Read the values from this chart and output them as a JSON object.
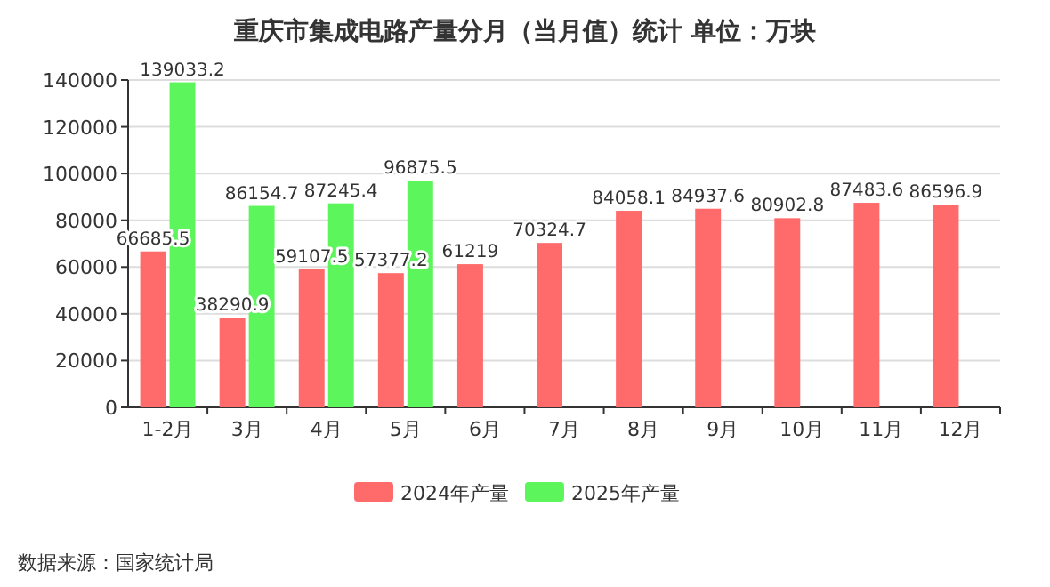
{
  "chart_data": {
    "type": "bar",
    "title": "重庆市集成电路产量分月（当月值）统计  单位：万块",
    "categories": [
      "1-2月",
      "3月",
      "4月",
      "5月",
      "6月",
      "7月",
      "8月",
      "9月",
      "10月",
      "11月",
      "12月"
    ],
    "series": [
      {
        "name": "2024年产量",
        "color": "#ff6b6b",
        "values": [
          66685.5,
          38290.9,
          59107.5,
          57377.2,
          61219,
          70324.7,
          84058.1,
          84937.6,
          80902.8,
          87483.6,
          86596.9
        ]
      },
      {
        "name": "2025年产量",
        "color": "#5cf55c",
        "values": [
          139033.2,
          86154.7,
          87245.4,
          96875.5,
          null,
          null,
          null,
          null,
          null,
          null,
          null
        ]
      }
    ],
    "ylim": [
      0,
      140000
    ],
    "yticks": [
      0,
      20000,
      40000,
      60000,
      80000,
      100000,
      120000,
      140000
    ],
    "grid": "y",
    "legend": "bottom",
    "data_labels": true,
    "annotations": [
      "数据来源：国家统计局"
    ]
  }
}
